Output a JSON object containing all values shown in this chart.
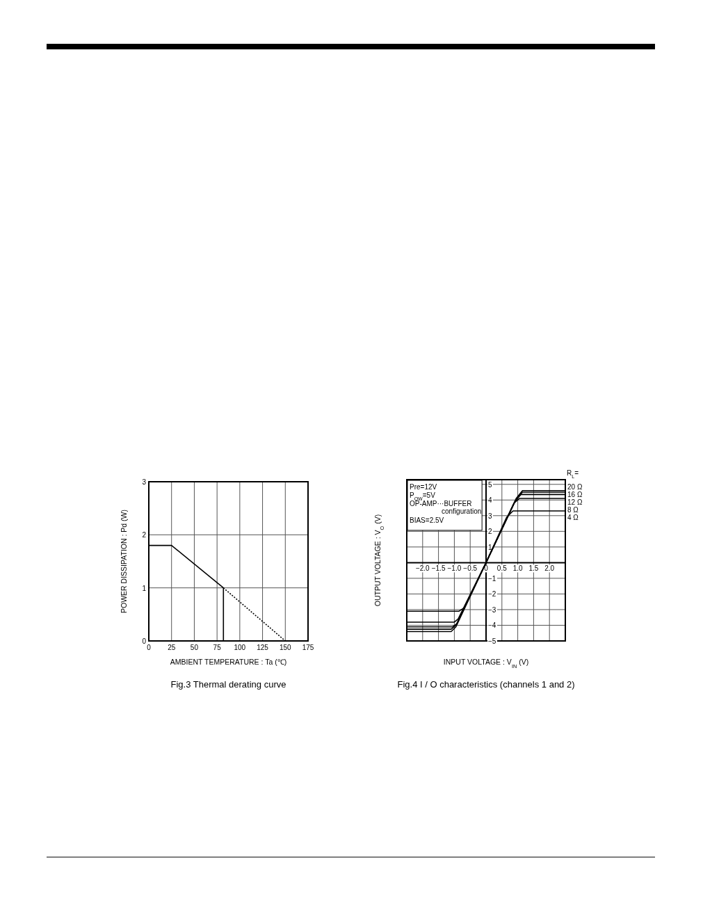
{
  "chart_data": [
    {
      "type": "line",
      "title": "Fig.3 Thermal derating curve",
      "xlabel": "AMBIENT TEMPERATURE : Ta (℃)",
      "ylabel": "POWER DISSIPATION : Pd (W)",
      "xlim": [
        0,
        175
      ],
      "ylim": [
        0,
        3
      ],
      "xticks": [
        0,
        25,
        50,
        75,
        100,
        125,
        150,
        175
      ],
      "yticks": [
        0,
        1,
        2,
        3
      ],
      "grid": true,
      "series": [
        {
          "color": "#000000",
          "x": [
            0,
            25,
            82,
            82
          ],
          "values": [
            1.8,
            1.8,
            1.0,
            0
          ]
        },
        {
          "color": "#000000",
          "line_style": "dotted",
          "x": [
            82,
            150
          ],
          "values": [
            1.0,
            0
          ]
        }
      ]
    },
    {
      "type": "line",
      "title": "Fig.4 I / O characteristics (channels 1 and 2)",
      "xlabel": "INPUT VOLTAGE : V$_{IN}$ (V)",
      "ylabel": "OUTPUT VOLTAGE : V$_{O}$ (V)",
      "legend_title": "R$_{L}$=",
      "xlim": [
        -2.5,
        2.5
      ],
      "ylim": [
        -5,
        5.3
      ],
      "xticks": [
        {
          "value": -2,
          "label": "−2.0"
        },
        {
          "value": -1.5,
          "label": "−1.5"
        },
        {
          "value": -1,
          "label": "−1.0"
        },
        {
          "value": -0.5,
          "label": "−0.5"
        },
        0,
        0.5,
        {
          "value": 1,
          "label": "1.0"
        },
        1.5,
        {
          "value": 2,
          "label": "2.0"
        }
      ],
      "yticks": [
        {
          "value": -5,
          "label": "−5"
        },
        {
          "value": -4,
          "label": "−4"
        },
        {
          "value": -3,
          "label": "−3"
        },
        {
          "value": -2,
          "label": "−2"
        },
        {
          "value": -1,
          "label": "−1"
        },
        1,
        2,
        3,
        4,
        5
      ],
      "grid": true,
      "annotations": [
        "Pre=12V",
        "P$_{OW}$=5V",
        "OP-AMP···BUFFER configuration",
        "BIAS=2.5V"
      ],
      "series": [
        {
          "name": "20 Ω",
          "color": "#000000",
          "x": [
            -2.5,
            -1.1,
            -0.95,
            0,
            0.95,
            1.15,
            2.5
          ],
          "values": [
            -4.4,
            -4.4,
            -4.1,
            0,
            4.1,
            4.6,
            4.6
          ]
        },
        {
          "name": "16 Ω",
          "color": "#000000",
          "x": [
            -2.5,
            -1.1,
            -0.95,
            0,
            0.95,
            1.15,
            2.5
          ],
          "values": [
            -4.25,
            -4.25,
            -4.0,
            0,
            4.05,
            4.5,
            4.5
          ]
        },
        {
          "name": "12 Ω",
          "color": "#000000",
          "x": [
            -2.5,
            -1.05,
            -0.92,
            0,
            0.92,
            1.1,
            2.5
          ],
          "values": [
            -4.1,
            -4.1,
            -3.9,
            0,
            3.95,
            4.35,
            4.35
          ]
        },
        {
          "name": "8 Ω",
          "color": "#000000",
          "x": [
            -2.5,
            -1.0,
            -0.88,
            0,
            0.88,
            1.05,
            2.5
          ],
          "values": [
            -3.8,
            -3.8,
            -3.6,
            0,
            3.8,
            4.1,
            4.1
          ]
        },
        {
          "name": "4 Ω",
          "color": "#000000",
          "x": [
            -2.5,
            -0.85,
            -0.7,
            0,
            0.65,
            0.85,
            2.5
          ],
          "values": [
            -3.1,
            -3.1,
            -2.9,
            0,
            2.9,
            3.3,
            3.3
          ]
        }
      ]
    }
  ]
}
